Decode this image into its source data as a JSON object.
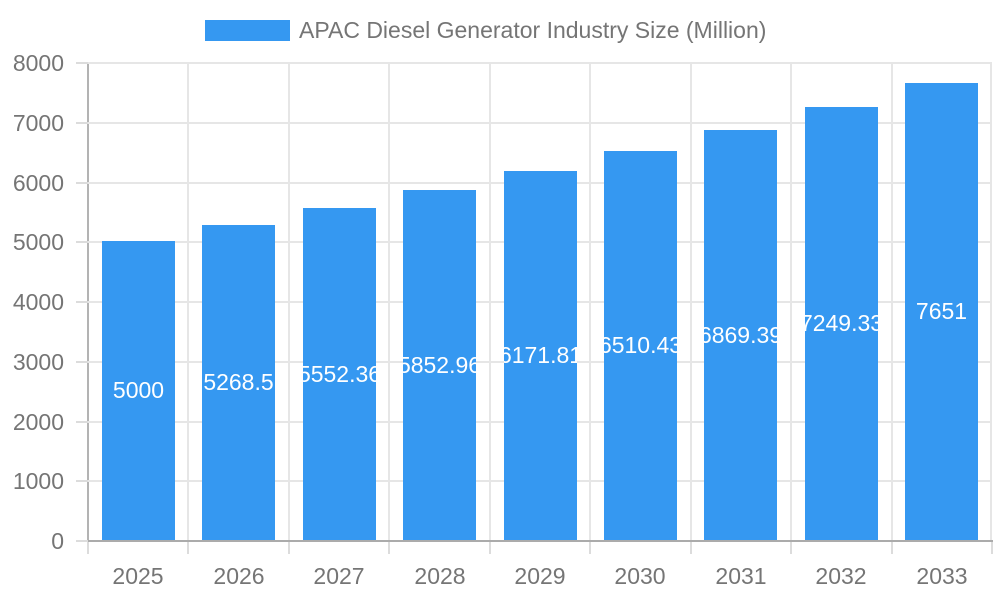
{
  "legend": {
    "label": "APAC Diesel Generator Industry Size (Million)"
  },
  "chart_data": {
    "type": "bar",
    "title": "APAC Diesel Generator Industry Size (Million)",
    "series_name": "APAC Diesel Generator Industry Size (Million)",
    "categories": [
      "2025",
      "2026",
      "2027",
      "2028",
      "2029",
      "2030",
      "2031",
      "2032",
      "2033"
    ],
    "values": [
      5000,
      5268.5,
      5552.36,
      5852.96,
      6171.81,
      6510.43,
      6869.39,
      7249.33,
      7651
    ],
    "value_labels": [
      "5000",
      "5268.5",
      "5552.36",
      "5852.96",
      "6171.81",
      "6510.43",
      "6869.39",
      "7249.33",
      "7651"
    ],
    "xlabel": "",
    "ylabel": "",
    "ylim": [
      0,
      8000
    ],
    "y_ticks": [
      0,
      1000,
      2000,
      3000,
      4000,
      5000,
      6000,
      7000,
      8000
    ],
    "y_tick_labels": [
      "0",
      "1000",
      "2000",
      "3000",
      "4000",
      "5000",
      "6000",
      "7000",
      "8000"
    ],
    "grid": true,
    "legend_position": "top-center",
    "bar_value_labels_inside": true,
    "colors": {
      "bar": "#3598F1",
      "bar_label_text": "#FFFFFF",
      "axis_text": "#757575",
      "legend_text": "#757575",
      "grid_line": "#E6E6E6",
      "axis_line": "#B3B3B3",
      "baseline": "#ABABAB",
      "tick": "#DCDCDC",
      "background": "#FFFFFF"
    }
  }
}
